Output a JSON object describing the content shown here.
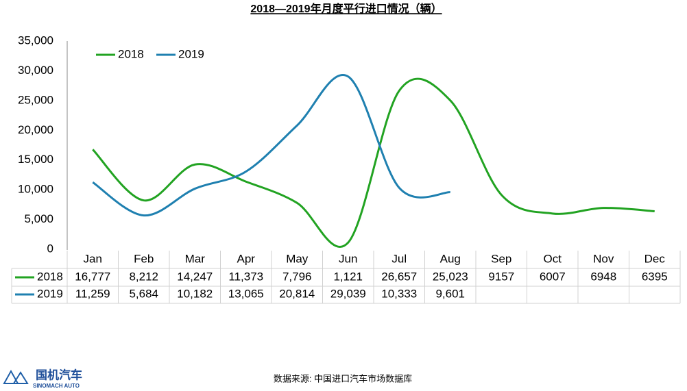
{
  "chart_data": {
    "type": "line",
    "title": "2018—2019年月度平行进口情况（辆）",
    "categories": [
      "Jan",
      "Feb",
      "Mar",
      "Apr",
      "May",
      "Jun",
      "Jul",
      "Aug",
      "Sep",
      "Oct",
      "Nov",
      "Dec"
    ],
    "series": [
      {
        "name": "2018",
        "color": "#22a322",
        "values": [
          16777,
          8212,
          14247,
          11373,
          7796,
          1121,
          26657,
          25023,
          9157,
          6007,
          6948,
          6395
        ],
        "value_labels": [
          "16,777",
          "8,212",
          "14,247",
          "11,373",
          "7,796",
          "1,121",
          "26,657",
          "25,023",
          "9157",
          "6007",
          "6948",
          "6395"
        ]
      },
      {
        "name": "2019",
        "color": "#1f80b0",
        "values": [
          11259,
          5684,
          10182,
          13065,
          20814,
          29039,
          10333,
          9601,
          null,
          null,
          null,
          null
        ],
        "value_labels": [
          "11,259",
          "5,684",
          "10,182",
          "13,065",
          "20,814",
          "29,039",
          "10,333",
          "9,601",
          null,
          null,
          null,
          null
        ]
      }
    ],
    "ylim": [
      0,
      35000
    ],
    "yticks": [
      0,
      {
        "value": 5000,
        "label": "5,000"
      },
      {
        "value": 10000,
        "label": "10,000"
      },
      {
        "value": 15000,
        "label": "15,000"
      },
      {
        "value": 20000,
        "label": "20,000"
      },
      {
        "value": 25000,
        "label": "25,000"
      },
      {
        "value": 30000,
        "label": "30,000"
      },
      {
        "value": 35000,
        "label": "35,000"
      }
    ],
    "grid": false,
    "legend": "top-left",
    "source": "数据来源: 中国进口汽车市场数据库"
  },
  "logo": {
    "name": "国机汽车",
    "subname": "SINOMACH AUTO"
  }
}
